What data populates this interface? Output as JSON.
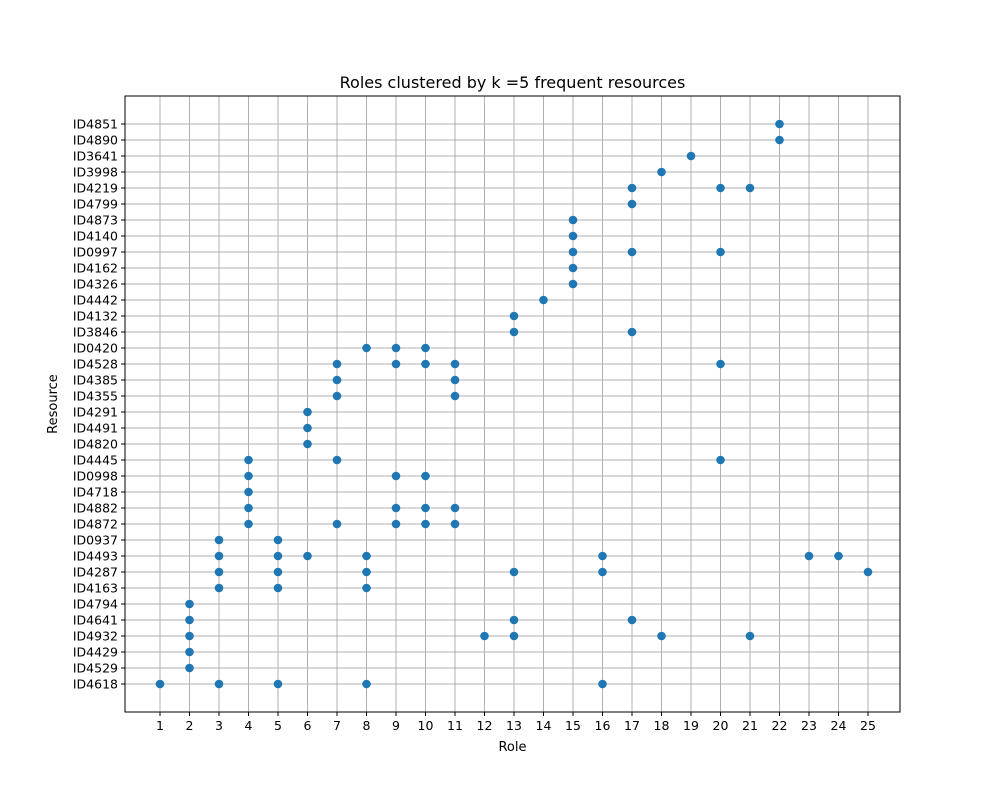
{
  "chart_data": {
    "type": "scatter",
    "title": "Roles clustered by k =5 frequent resources",
    "xlabel": "Role",
    "ylabel": "Resource",
    "grid": true,
    "marker_color": "#1f77b4",
    "grid_color": "#b0b0b0",
    "x_categories": [
      1,
      2,
      3,
      4,
      5,
      6,
      7,
      8,
      9,
      10,
      11,
      12,
      13,
      14,
      15,
      16,
      17,
      18,
      19,
      20,
      21,
      22,
      23,
      24,
      25
    ],
    "y_categories": [
      "ID4618",
      "ID4529",
      "ID4429",
      "ID4932",
      "ID4641",
      "ID4794",
      "ID4163",
      "ID4287",
      "ID4493",
      "ID0937",
      "ID4872",
      "ID4882",
      "ID4718",
      "ID0998",
      "ID4445",
      "ID4820",
      "ID4491",
      "ID4291",
      "ID4355",
      "ID4385",
      "ID4528",
      "ID0420",
      "ID3846",
      "ID4132",
      "ID4442",
      "ID4326",
      "ID4162",
      "ID0997",
      "ID4140",
      "ID4873",
      "ID4799",
      "ID4219",
      "ID3998",
      "ID3641",
      "ID4890",
      "ID4851"
    ],
    "points": [
      {
        "role": 1,
        "resource": "ID4618"
      },
      {
        "role": 3,
        "resource": "ID4618"
      },
      {
        "role": 5,
        "resource": "ID4618"
      },
      {
        "role": 8,
        "resource": "ID4618"
      },
      {
        "role": 16,
        "resource": "ID4618"
      },
      {
        "role": 2,
        "resource": "ID4529"
      },
      {
        "role": 2,
        "resource": "ID4429"
      },
      {
        "role": 2,
        "resource": "ID4932"
      },
      {
        "role": 12,
        "resource": "ID4932"
      },
      {
        "role": 13,
        "resource": "ID4932"
      },
      {
        "role": 18,
        "resource": "ID4932"
      },
      {
        "role": 21,
        "resource": "ID4932"
      },
      {
        "role": 2,
        "resource": "ID4641"
      },
      {
        "role": 13,
        "resource": "ID4641"
      },
      {
        "role": 17,
        "resource": "ID4641"
      },
      {
        "role": 2,
        "resource": "ID4794"
      },
      {
        "role": 3,
        "resource": "ID4163"
      },
      {
        "role": 5,
        "resource": "ID4163"
      },
      {
        "role": 8,
        "resource": "ID4163"
      },
      {
        "role": 3,
        "resource": "ID4287"
      },
      {
        "role": 5,
        "resource": "ID4287"
      },
      {
        "role": 8,
        "resource": "ID4287"
      },
      {
        "role": 13,
        "resource": "ID4287"
      },
      {
        "role": 16,
        "resource": "ID4287"
      },
      {
        "role": 25,
        "resource": "ID4287"
      },
      {
        "role": 3,
        "resource": "ID4493"
      },
      {
        "role": 5,
        "resource": "ID4493"
      },
      {
        "role": 6,
        "resource": "ID4493"
      },
      {
        "role": 8,
        "resource": "ID4493"
      },
      {
        "role": 16,
        "resource": "ID4493"
      },
      {
        "role": 23,
        "resource": "ID4493"
      },
      {
        "role": 24,
        "resource": "ID4493"
      },
      {
        "role": 3,
        "resource": "ID0937"
      },
      {
        "role": 5,
        "resource": "ID0937"
      },
      {
        "role": 4,
        "resource": "ID4872"
      },
      {
        "role": 7,
        "resource": "ID4872"
      },
      {
        "role": 9,
        "resource": "ID4872"
      },
      {
        "role": 10,
        "resource": "ID4872"
      },
      {
        "role": 11,
        "resource": "ID4872"
      },
      {
        "role": 4,
        "resource": "ID4882"
      },
      {
        "role": 9,
        "resource": "ID4882"
      },
      {
        "role": 10,
        "resource": "ID4882"
      },
      {
        "role": 11,
        "resource": "ID4882"
      },
      {
        "role": 4,
        "resource": "ID4718"
      },
      {
        "role": 4,
        "resource": "ID0998"
      },
      {
        "role": 9,
        "resource": "ID0998"
      },
      {
        "role": 10,
        "resource": "ID0998"
      },
      {
        "role": 4,
        "resource": "ID4445"
      },
      {
        "role": 7,
        "resource": "ID4445"
      },
      {
        "role": 20,
        "resource": "ID4445"
      },
      {
        "role": 6,
        "resource": "ID4820"
      },
      {
        "role": 6,
        "resource": "ID4491"
      },
      {
        "role": 6,
        "resource": "ID4291"
      },
      {
        "role": 7,
        "resource": "ID4355"
      },
      {
        "role": 11,
        "resource": "ID4355"
      },
      {
        "role": 7,
        "resource": "ID4385"
      },
      {
        "role": 11,
        "resource": "ID4385"
      },
      {
        "role": 7,
        "resource": "ID4528"
      },
      {
        "role": 9,
        "resource": "ID4528"
      },
      {
        "role": 10,
        "resource": "ID4528"
      },
      {
        "role": 11,
        "resource": "ID4528"
      },
      {
        "role": 20,
        "resource": "ID4528"
      },
      {
        "role": 8,
        "resource": "ID0420"
      },
      {
        "role": 9,
        "resource": "ID0420"
      },
      {
        "role": 10,
        "resource": "ID0420"
      },
      {
        "role": 13,
        "resource": "ID3846"
      },
      {
        "role": 17,
        "resource": "ID3846"
      },
      {
        "role": 13,
        "resource": "ID4132"
      },
      {
        "role": 14,
        "resource": "ID4442"
      },
      {
        "role": 15,
        "resource": "ID4326"
      },
      {
        "role": 15,
        "resource": "ID4162"
      },
      {
        "role": 15,
        "resource": "ID0997"
      },
      {
        "role": 17,
        "resource": "ID0997"
      },
      {
        "role": 20,
        "resource": "ID0997"
      },
      {
        "role": 15,
        "resource": "ID4140"
      },
      {
        "role": 15,
        "resource": "ID4873"
      },
      {
        "role": 17,
        "resource": "ID4799"
      },
      {
        "role": 17,
        "resource": "ID4219"
      },
      {
        "role": 20,
        "resource": "ID4219"
      },
      {
        "role": 21,
        "resource": "ID4219"
      },
      {
        "role": 18,
        "resource": "ID3998"
      },
      {
        "role": 19,
        "resource": "ID3641"
      },
      {
        "role": 22,
        "resource": "ID4890"
      },
      {
        "role": 22,
        "resource": "ID4851"
      }
    ]
  }
}
